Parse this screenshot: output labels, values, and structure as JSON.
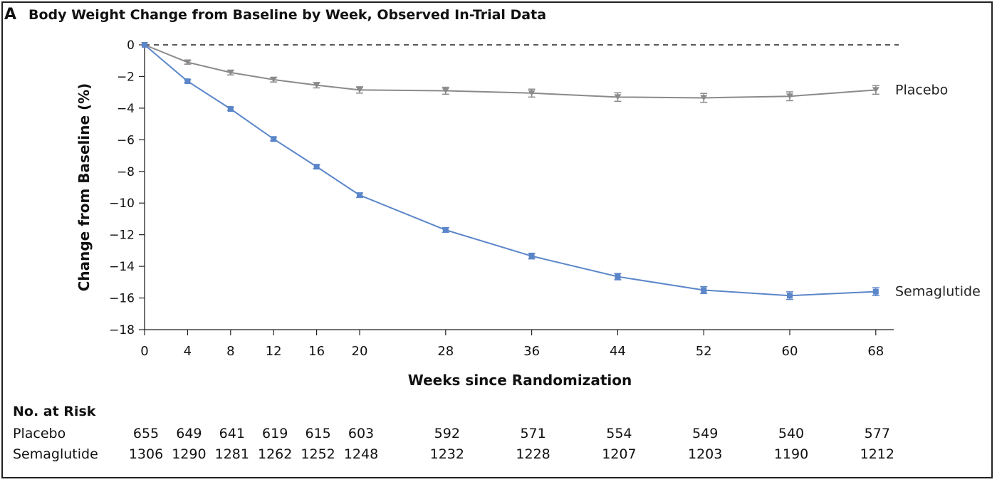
{
  "panel": {
    "letter": "A",
    "title": "Body Weight Change from Baseline by Week, Observed In-Trial Data"
  },
  "chart_data": {
    "type": "line",
    "title": "Body Weight Change from Baseline by Week, Observed In-Trial Data",
    "xlabel": "Weeks since Randomization",
    "ylabel": "Change from Baseline (%)",
    "x": [
      0,
      4,
      8,
      12,
      16,
      20,
      28,
      36,
      44,
      52,
      60,
      68
    ],
    "xticks": [
      "0",
      "4",
      "8",
      "12",
      "16",
      "20",
      "28",
      "36",
      "44",
      "52",
      "60",
      "68"
    ],
    "yticks": [
      "0",
      "−2",
      "−4",
      "−6",
      "−8",
      "−10",
      "−12",
      "−14",
      "−16",
      "−18"
    ],
    "ylim": [
      -18,
      0
    ],
    "xlim": [
      0,
      70
    ],
    "reference_line": {
      "y": 0,
      "style": "dashed"
    },
    "grid": false,
    "series": [
      {
        "name": "Placebo",
        "color": "#8a8a8a",
        "marker": "triangle-down",
        "values": [
          0,
          -1.1,
          -1.75,
          -2.2,
          -2.55,
          -2.85,
          -2.9,
          -3.05,
          -3.3,
          -3.35,
          -3.25,
          -2.85
        ],
        "errors": [
          0,
          0.12,
          0.15,
          0.15,
          0.17,
          0.2,
          0.22,
          0.25,
          0.27,
          0.28,
          0.28,
          0.27
        ]
      },
      {
        "name": "Semaglutide",
        "color": "#5b86c9",
        "marker": "square",
        "values": [
          0,
          -2.3,
          -4.05,
          -5.95,
          -7.7,
          -9.5,
          -11.7,
          -13.35,
          -14.65,
          -15.5,
          -15.85,
          -15.6
        ],
        "errors": [
          0,
          0.1,
          0.1,
          0.12,
          0.12,
          0.14,
          0.15,
          0.18,
          0.2,
          0.22,
          0.24,
          0.25
        ]
      }
    ]
  },
  "risk_table": {
    "heading": "No. at Risk",
    "weeks": [
      0,
      4,
      8,
      12,
      16,
      20,
      28,
      36,
      44,
      52,
      60,
      68
    ],
    "rows": [
      {
        "label": "Placebo",
        "values": [
          "655",
          "649",
          "641",
          "619",
          "615",
          "603",
          "592",
          "571",
          "554",
          "549",
          "540",
          "577"
        ]
      },
      {
        "label": "Semaglutide",
        "values": [
          "1306",
          "1290",
          "1281",
          "1262",
          "1252",
          "1248",
          "1232",
          "1228",
          "1207",
          "1203",
          "1190",
          "1212"
        ]
      }
    ]
  }
}
